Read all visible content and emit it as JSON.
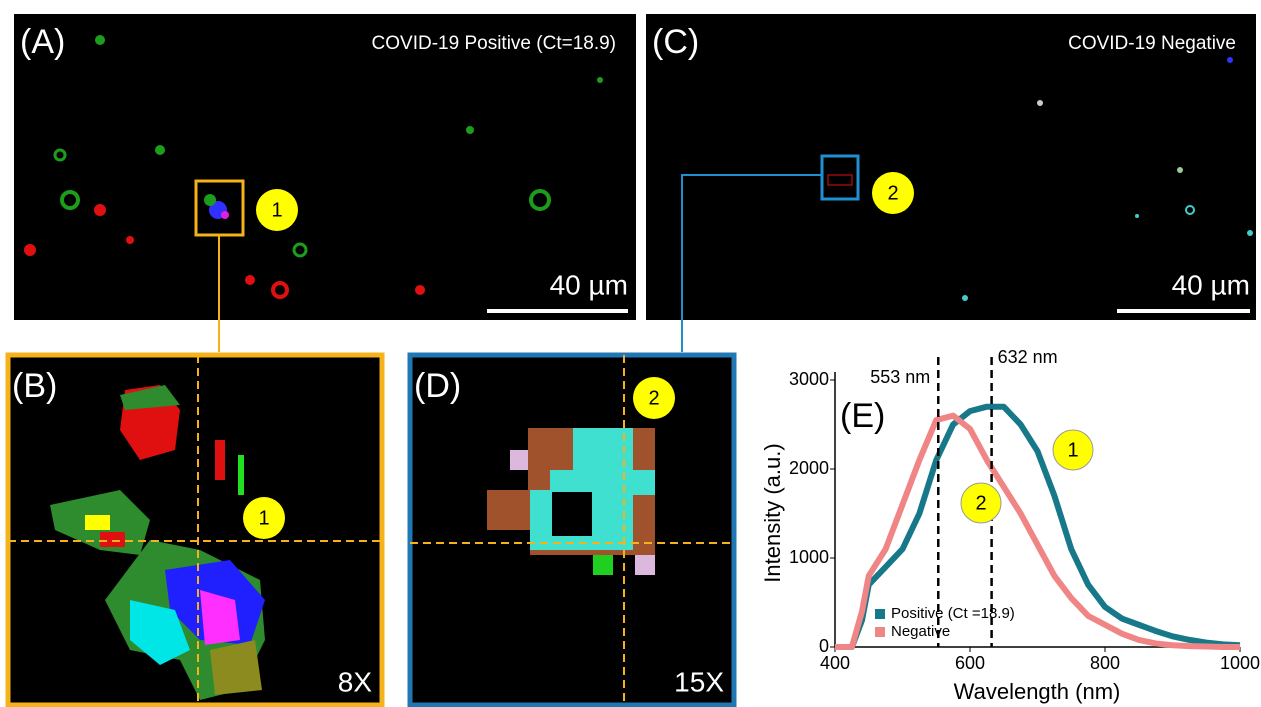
{
  "panels": {
    "A": {
      "label": "(A)",
      "title": "COVID-19 Positive (Ct=18.9)",
      "scale_bar": "40 µm",
      "marker": "1"
    },
    "B": {
      "label": "(B)",
      "marker": "1",
      "magnification": "8X"
    },
    "C": {
      "label": "(C)",
      "title": "COVID-19 Negative",
      "scale_bar": "40 µm",
      "marker": "2"
    },
    "D": {
      "label": "(D)",
      "marker": "2",
      "magnification": "15X"
    }
  },
  "chart_data": {
    "type": "line",
    "panel_label": "(E)",
    "x_label": "Wavelength (nm)",
    "y_label": "Intensity (a.u.)",
    "x": [
      400,
      425,
      440,
      450,
      475,
      500,
      525,
      550,
      575,
      600,
      625,
      650,
      675,
      700,
      725,
      750,
      775,
      800,
      825,
      850,
      875,
      900,
      925,
      950,
      975,
      1000
    ],
    "series": [
      {
        "name": "Positive (Ct =18.9)",
        "color": "#17788a",
        "values": [
          0,
          0,
          300,
          700,
          900,
          1100,
          1500,
          2100,
          2500,
          2650,
          2700,
          2700,
          2500,
          2200,
          1700,
          1100,
          700,
          450,
          320,
          250,
          180,
          120,
          80,
          50,
          30,
          20
        ]
      },
      {
        "name": "Negative",
        "color": "#f08585",
        "values": [
          0,
          0,
          400,
          800,
          1100,
          1600,
          2100,
          2550,
          2600,
          2450,
          2100,
          1800,
          1500,
          1150,
          800,
          550,
          350,
          250,
          150,
          80,
          40,
          20,
          10,
          5,
          0,
          0
        ]
      }
    ],
    "xlim": [
      400,
      1000
    ],
    "xticks": [
      400,
      600,
      800,
      1000
    ],
    "ylim": [
      0,
      3000
    ],
    "yticks": [
      0,
      1000,
      2000,
      3000
    ],
    "vlines": [
      {
        "value": 553,
        "label": "553 nm"
      },
      {
        "value": 632,
        "label": "632 nm"
      }
    ],
    "markers": [
      "1",
      "2"
    ],
    "legend": "lower left"
  }
}
